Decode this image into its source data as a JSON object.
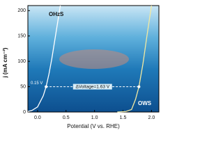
{
  "chart_data": {
    "type": "line",
    "xlabel": "Potential (V vs. RHE)",
    "ylabel": "j (mA cm⁻²)",
    "xlim": [
      -0.17,
      2.13
    ],
    "ylim": [
      0,
      210
    ],
    "xticks": [
      {
        "value": 0,
        "label": "0.0"
      },
      0.5,
      {
        "value": 1,
        "label": "1.0"
      },
      1.5,
      {
        "value": 2,
        "label": "2.0"
      }
    ],
    "yticks": [
      0,
      50,
      100,
      150,
      200
    ],
    "series": [
      {
        "name": "OHzS",
        "color": "#ffffff",
        "x": [
          -0.17,
          -0.1,
          0,
          0.1,
          0.15,
          0.2,
          0.25,
          0.3,
          0.35,
          0.4
        ],
        "values": [
          1,
          3,
          10,
          32,
          50,
          75,
          105,
          140,
          175,
          210
        ]
      },
      {
        "name": "OWS",
        "color": "#f3e9a0",
        "x": [
          1.4,
          1.55,
          1.65,
          1.72,
          1.78,
          1.85,
          1.92,
          2.0
        ],
        "values": [
          0,
          1,
          5,
          25,
          50,
          95,
          150,
          210
        ]
      }
    ],
    "annotations": [
      "0.15 V",
      "ΔVoltage=1.63 V"
    ]
  }
}
